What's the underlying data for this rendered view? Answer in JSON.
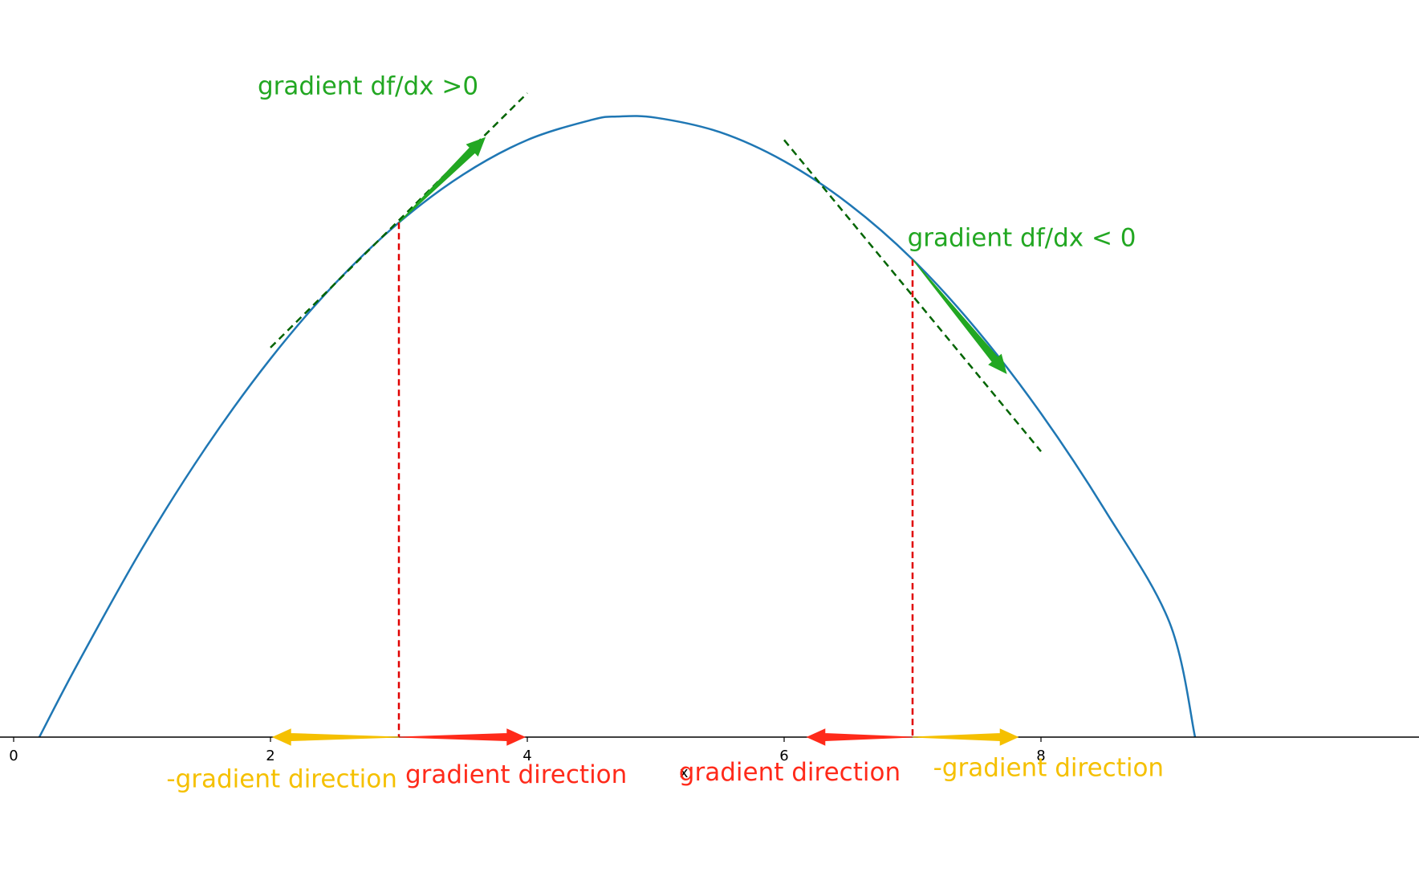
{
  "chart_data": {
    "type": "line",
    "title": "",
    "xlabel": "x",
    "ylabel": "",
    "xlim": [
      0,
      9.5
    ],
    "x_ticks": [
      0,
      2,
      4,
      6,
      8
    ],
    "x_tick_labels": [
      "0",
      "2",
      "4",
      "6",
      "8"
    ],
    "y_ticks_shown": false,
    "grid": false,
    "series": [
      {
        "color": "#1f77b4",
        "x": [
          0.2,
          0.5,
          1.0,
          1.5,
          2.0,
          2.5,
          3.0,
          3.5,
          4.0,
          4.5,
          4.7,
          5.0,
          5.5,
          6.0,
          6.5,
          7.0,
          7.5,
          8.0,
          8.5,
          9.0,
          9.2
        ],
        "y": [
          0.0,
          0.66,
          1.69,
          2.6,
          3.39,
          4.06,
          4.61,
          5.04,
          5.35,
          5.53,
          5.56,
          5.55,
          5.42,
          5.16,
          4.78,
          4.28,
          3.65,
          2.9,
          2.03,
          1.03,
          0.0
        ]
      }
    ],
    "tangent_lines": [
      {
        "color": "#006400",
        "style": "dashed",
        "x": [
          2.0,
          4.0
        ],
        "y": [
          3.49,
          5.77
        ]
      },
      {
        "color": "#006400",
        "style": "dashed",
        "x": [
          6.0,
          8.0
        ],
        "y": [
          5.35,
          2.56
        ]
      }
    ],
    "vertical_markers": [
      {
        "color": "#e00000",
        "style": "dashed",
        "x": 3.0,
        "y_top": 4.61
      },
      {
        "color": "#e00000",
        "style": "dashed",
        "x": 7.0,
        "y_top": 4.28
      }
    ],
    "arrows": [
      {
        "name": "slope-arrow-left",
        "color": "#22a722",
        "from": [
          3.0,
          4.61
        ],
        "to": [
          3.67,
          5.37
        ]
      },
      {
        "name": "slope-arrow-right",
        "color": "#22a722",
        "from": [
          7.0,
          4.28
        ],
        "to": [
          7.73,
          3.26
        ]
      },
      {
        "name": "neg-gradient-arrow-left",
        "color": "#f5c000",
        "from": [
          3.0,
          0.0
        ],
        "to": [
          2.02,
          0.0
        ]
      },
      {
        "name": "gradient-arrow-left",
        "color": "#ff2a1a",
        "from": [
          3.0,
          0.0
        ],
        "to": [
          3.98,
          0.0
        ]
      },
      {
        "name": "gradient-arrow-right",
        "color": "#ff2a1a",
        "from": [
          7.0,
          0.0
        ],
        "to": [
          6.18,
          0.0
        ]
      },
      {
        "name": "neg-gradient-arrow-right",
        "color": "#f5c000",
        "from": [
          7.0,
          0.0
        ],
        "to": [
          7.82,
          0.0
        ]
      }
    ],
    "annotations": [
      {
        "name": "annot-gradient-positive",
        "text": "gradient df/dx >0",
        "color": "#22a722",
        "x": 1.9,
        "y": 5.76
      },
      {
        "name": "annot-gradient-negative",
        "text": "gradient df/dx < 0",
        "color": "#22a722",
        "x": 6.96,
        "y": 4.4
      },
      {
        "name": "annot-neg-gradient-direction-left",
        "text": "-gradient direction",
        "color": "#f5c000",
        "x": 1.19,
        "y": -0.45
      },
      {
        "name": "annot-gradient-direction-left",
        "text": "gradient direction",
        "color": "#ff2a1a",
        "x": 3.05,
        "y": -0.41
      },
      {
        "name": "annot-gradient-direction-right",
        "text": "gradient direction",
        "color": "#ff2a1a",
        "x": 5.18,
        "y": -0.39
      },
      {
        "name": "annot-neg-gradient-direction-right",
        "text": "-gradient direction",
        "color": "#f5c000",
        "x": 7.16,
        "y": -0.35
      }
    ]
  }
}
